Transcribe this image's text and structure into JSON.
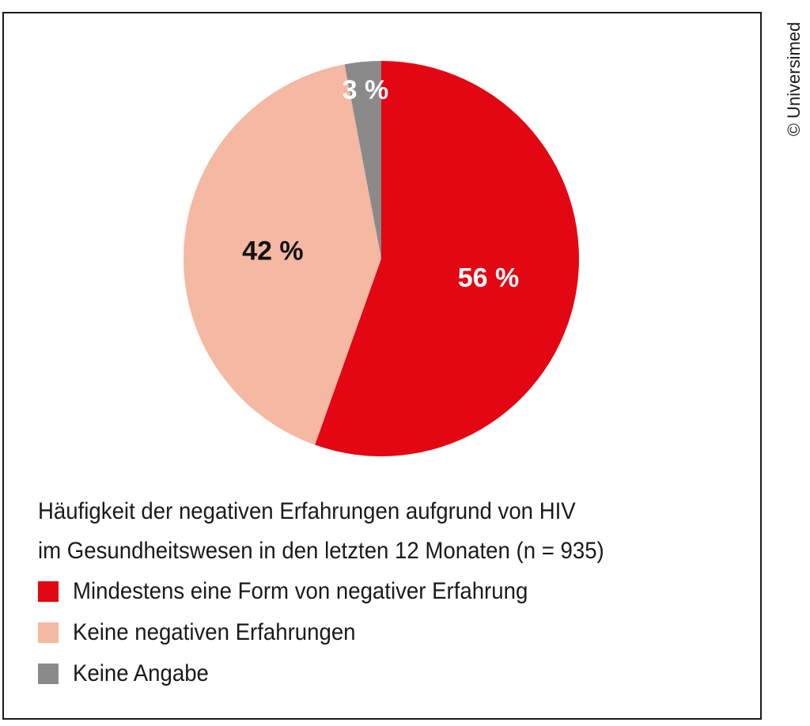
{
  "credit": "© Universimed",
  "chart_data": {
    "type": "pie",
    "title": "Häufigkeit der negativen Erfahrungen aufgrund von HIV im Gesundheitswesen in den letzten 12 Monaten (n = 935)",
    "title_lines": [
      "Häufigkeit der negativen Erfahrungen aufgrund von HIV",
      "im Gesundheitswesen in den letzten 12 Monaten (n = 935)"
    ],
    "legend_position": "bottom",
    "slices": [
      {
        "label": "Mindestens eine Form von negativer Erfahrung",
        "value": 56,
        "display": "56 %",
        "color": "#e30613",
        "label_color": "#ffffff"
      },
      {
        "label": "Keine negativen Erfahrungen",
        "value": 42,
        "display": "42 %",
        "color": "#f5b8a3",
        "label_color": "#111111"
      },
      {
        "label": "Keine Angabe",
        "value": 3,
        "display": "3 %",
        "color": "#8a8a8a",
        "label_color": "#ffffff"
      }
    ]
  }
}
